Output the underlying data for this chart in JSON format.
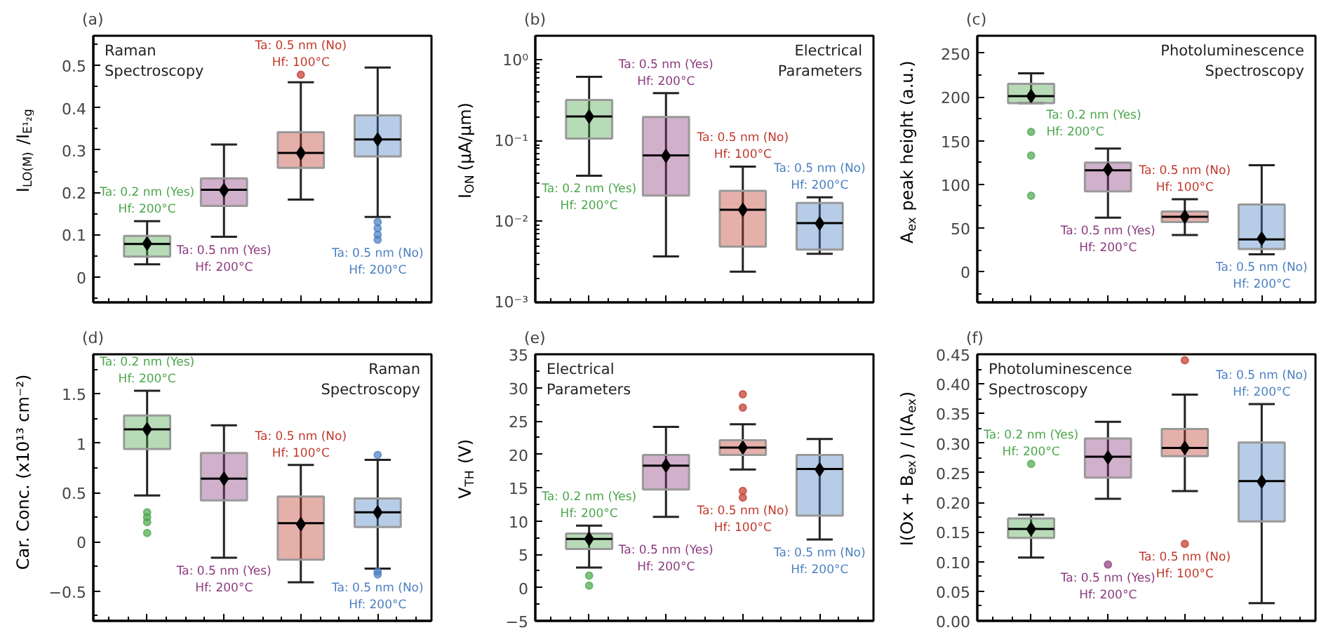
{
  "chart_data": [
    {
      "type": "box",
      "title": "(a)",
      "ylabel": "I$_{LO(M)}$ /I$_{E¹₂g}$",
      "categories": [
        null,
        null,
        null,
        null
      ],
      "colors": [
        "#4ca64c",
        "#8b3a7e",
        "#c0392b",
        "#4a7fc1"
      ],
      "tick_labels": "y",
      "ylim": [
        -0.06,
        0.57
      ],
      "yticks": [
        0.0,
        0.1,
        0.2,
        0.3,
        0.4,
        0.5
      ],
      "boxes": [
        {
          "low": 0.03,
          "q1": 0.048,
          "median": 0.078,
          "q3": 0.097,
          "high": 0.132,
          "mean": 0.079
        },
        {
          "low": 0.095,
          "q1": 0.168,
          "median": 0.206,
          "q3": 0.233,
          "high": 0.313,
          "mean": 0.205
        },
        {
          "low": 0.183,
          "q1": 0.258,
          "median": 0.293,
          "q3": 0.342,
          "high": 0.46,
          "mean": 0.293,
          "outliers": [
            0.478
          ]
        },
        {
          "low": 0.142,
          "q1": 0.285,
          "median": 0.325,
          "q3": 0.382,
          "high": 0.495,
          "mean": 0.325,
          "outliers": [
            0.13,
            0.115,
            0.1,
            0.088
          ]
        }
      ],
      "annotations": [
        "Raman\nSpectroscopy",
        "Ta: 0.2 nm (Yes)\nHf: 200°C",
        "Ta: 0.5 nm (Yes)\nHf: 200°C",
        "Ta: 0.5 nm (No)\nHf: 100°C",
        "Ta: 0.5 nm (No)\nHf: 200°C"
      ]
    },
    {
      "type": "box",
      "title": "(b)",
      "ylabel": "I$_{ON}$ (µA/µm)",
      "categories": [
        null,
        null,
        null,
        null
      ],
      "colors": [
        "#4ca64c",
        "#8b3a7e",
        "#c0392b",
        "#4a7fc1"
      ],
      "tick_labels": "y",
      "log": true,
      "ylim": [
        0.001,
        2
      ],
      "yticks": [
        {
          "value": 0.001,
          "label": "10⁻³"
        },
        {
          "value": 0.01,
          "label": "10⁻²"
        },
        {
          "value": 0.1,
          "label": "10⁻¹"
        },
        {
          "value": 1,
          "label": "10⁰"
        }
      ],
      "boxes": [
        {
          "low": 0.037,
          "q1": 0.107,
          "median": 0.2,
          "q3": 0.32,
          "high": 0.62,
          "mean": 0.2
        },
        {
          "low": 0.0037,
          "q1": 0.021,
          "median": 0.066,
          "q3": 0.197,
          "high": 0.39,
          "mean": 0.065
        },
        {
          "low": 0.0024,
          "q1": 0.0049,
          "median": 0.014,
          "q3": 0.024,
          "high": 0.048,
          "mean": 0.014
        },
        {
          "low": 0.004,
          "q1": 0.0045,
          "median": 0.0096,
          "q3": 0.017,
          "high": 0.02,
          "mean": 0.0095
        }
      ],
      "annotations": [
        "Electrical\nParameters",
        "Ta: 0.2 nm (Yes)\nHf: 200°C",
        "Ta: 0.5 nm (Yes)\nHf: 200°C",
        "Ta: 0.5 nm (No)\nHf: 100°C",
        "Ta: 0.5 nm (No)\nHf: 200°C"
      ]
    },
    {
      "type": "box",
      "title": "(c)",
      "ylabel": "A$_{ex}$ peak height (a.u.)",
      "categories": [
        null,
        null,
        null,
        null
      ],
      "colors": [
        "#4ca64c",
        "#8b3a7e",
        "#c0392b",
        "#4a7fc1"
      ],
      "tick_labels": "y",
      "ylim": [
        -35,
        270
      ],
      "yticks": [
        0,
        50,
        100,
        150,
        200,
        250
      ],
      "boxes": [
        {
          "low": 193,
          "q1": 193,
          "median": 201,
          "q3": 215,
          "high": 227,
          "mean": 201,
          "outliers": [
            160,
            133,
            87
          ]
        },
        {
          "low": 62,
          "q1": 92,
          "median": 116,
          "q3": 125,
          "high": 141,
          "mean": 117
        },
        {
          "low": 42,
          "q1": 57,
          "median": 63,
          "q3": 69,
          "high": 83,
          "mean": 63
        },
        {
          "low": 20,
          "q1": 26,
          "median": 37,
          "q3": 77,
          "high": 122,
          "mean": 38
        }
      ],
      "annotations": [
        "Photoluminescence\nSpectroscopy",
        "Ta: 0.2 nm (Yes)\nHf: 200°C",
        "Ta: 0.5 nm (Yes)\nHf: 200°C",
        "Ta: 0.5 nm (No)\nHf: 100°C",
        "Ta: 0.5 nm (No)\nHf: 200°C"
      ]
    },
    {
      "type": "box",
      "title": "(d)",
      "ylabel": "Car. Conc. (x10¹³ cm⁻²)",
      "categories": [
        null,
        null,
        null,
        null
      ],
      "colors": [
        "#4ca64c",
        "#8b3a7e",
        "#c0392b",
        "#4a7fc1"
      ],
      "tick_labels": "y",
      "ylim": [
        -0.8,
        1.9
      ],
      "yticks": [
        -0.5,
        0.0,
        0.5,
        1.0,
        1.5
      ],
      "boxes": [
        {
          "low": 0.47,
          "q1": 0.94,
          "median": 1.14,
          "q3": 1.28,
          "high": 1.53,
          "mean": 1.14,
          "outliers": [
            0.3,
            0.25,
            0.2,
            0.09
          ]
        },
        {
          "low": -0.16,
          "q1": 0.42,
          "median": 0.64,
          "q3": 0.9,
          "high": 1.18,
          "mean": 0.64
        },
        {
          "low": -0.41,
          "q1": -0.18,
          "median": 0.19,
          "q3": 0.46,
          "high": 0.78,
          "mean": 0.18
        },
        {
          "low": -0.27,
          "q1": 0.15,
          "median": 0.3,
          "q3": 0.44,
          "high": 0.83,
          "mean": 0.3,
          "outliers": [
            0.88,
            -0.3,
            -0.33
          ]
        }
      ],
      "annotations": [
        "Raman\nSpectroscopy",
        "Ta: 0.2 nm (Yes)\nHf: 200°C",
        "Ta: 0.5 nm (Yes)\nHf: 200°C",
        "Ta: 0.5 nm (No)\nHf: 100°C",
        "Ta: 0.5 nm (No)\nHf: 200°C"
      ]
    },
    {
      "type": "box",
      "title": "(e)",
      "ylabel": "V$_{TH}$ (V)",
      "categories": [
        null,
        null,
        null,
        null
      ],
      "colors": [
        "#4ca64c",
        "#8b3a7e",
        "#c0392b",
        "#4a7fc1"
      ],
      "tick_labels": "y",
      "ylim": [
        -5,
        35
      ],
      "yticks": [
        -5,
        0,
        5,
        10,
        15,
        20,
        25,
        30,
        35
      ],
      "boxes": [
        {
          "low": 3.0,
          "q1": 5.8,
          "median": 7.3,
          "q3": 8.1,
          "high": 9.3,
          "mean": 7.3,
          "outliers": [
            1.8,
            0.3
          ]
        },
        {
          "low": 10.6,
          "q1": 14.7,
          "median": 18.3,
          "q3": 19.9,
          "high": 24.1,
          "mean": 18.3
        },
        {
          "low": 17.7,
          "q1": 19.9,
          "median": 21.0,
          "q3": 22.1,
          "high": 24.5,
          "mean": 21.0,
          "outliers": [
            29,
            27,
            14.5,
            13.5
          ]
        },
        {
          "low": 7.2,
          "q1": 10.8,
          "median": 17.8,
          "q3": 19.9,
          "high": 22.3,
          "mean": 17.7
        }
      ],
      "annotations": [
        "Electrical\nParameters",
        "Ta: 0.2 nm (Yes)\nHf: 200°C",
        "Ta: 0.5 nm (Yes)\nHf: 200°C",
        "Ta: 0.5 nm (No)\nHf: 100°C",
        "Ta: 0.5 nm (No)\nHf: 200°C"
      ]
    },
    {
      "type": "box",
      "title": "(f)",
      "ylabel": "I(Ox + B$_{ex}$) / I(A$_{ex}$)",
      "categories": [
        null,
        null,
        null,
        null
      ],
      "colors": [
        "#4ca64c",
        "#8b3a7e",
        "#c0392b",
        "#4a7fc1"
      ],
      "tick_labels": "y",
      "ylim": [
        0,
        0.45
      ],
      "yticks": [
        {
          "value": 0,
          "label": "0.00"
        },
        {
          "value": 0.05,
          "label": "0.05"
        },
        {
          "value": 0.1,
          "label": "0.10"
        },
        {
          "value": 0.15,
          "label": "0.15"
        },
        {
          "value": 0.2,
          "label": "0.20"
        },
        {
          "value": 0.25,
          "label": "0.25"
        },
        {
          "value": 0.3,
          "label": "0.30"
        },
        {
          "value": 0.35,
          "label": "0.35"
        },
        {
          "value": 0.4,
          "label": "0.40"
        },
        {
          "value": 0.45,
          "label": "0.45"
        }
      ],
      "boxes": [
        {
          "low": 0.107,
          "q1": 0.14,
          "median": 0.155,
          "q3": 0.173,
          "high": 0.179,
          "mean": 0.155,
          "outliers": [
            0.265
          ]
        },
        {
          "low": 0.206,
          "q1": 0.242,
          "median": 0.277,
          "q3": 0.308,
          "high": 0.336,
          "mean": 0.276,
          "outliers": [
            0.095
          ]
        },
        {
          "low": 0.219,
          "q1": 0.278,
          "median": 0.292,
          "q3": 0.324,
          "high": 0.382,
          "mean": 0.292,
          "outliers": [
            0.44,
            0.13
          ]
        },
        {
          "low": 0.03,
          "q1": 0.168,
          "median": 0.236,
          "q3": 0.301,
          "high": 0.366,
          "mean": 0.235
        }
      ],
      "annotations": [
        "Photoluminescence\nSpectroscopy",
        "Ta: 0.2 nm (Yes)\nHf: 200°C",
        "Ta: 0.5 nm (Yes)\nHf: 200°C",
        "Ta: 0.5 nm (No)\nHf: 100°C",
        "Ta: 0.5 nm (No)\nHf: 200°C"
      ]
    }
  ]
}
